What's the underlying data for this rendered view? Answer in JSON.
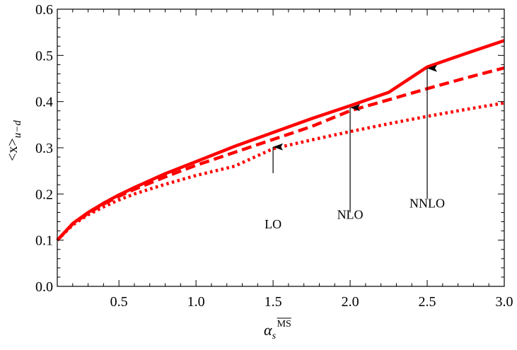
{
  "chart_data": {
    "type": "line",
    "title": "",
    "xlim": [
      0.1,
      3.0
    ],
    "ylim": [
      0.0,
      0.6
    ],
    "x_ticks": [
      0.5,
      1.0,
      1.5,
      2.0,
      2.5,
      3.0
    ],
    "x_tick_labels": [
      "0.5",
      "1.0",
      "1.5",
      "2.0",
      "2.5",
      "3.0"
    ],
    "y_ticks": [
      0.0,
      0.1,
      0.2,
      0.3,
      0.4,
      0.5,
      0.6
    ],
    "y_tick_labels": [
      "0.0",
      "0.1",
      "0.2",
      "0.3",
      "0.4",
      "0.5",
      "0.6"
    ],
    "xlabel": {
      "symbol": "α",
      "subscript": "s",
      "superscript": "MS"
    },
    "ylabel": {
      "text": "<x>",
      "subscript": "u−d"
    },
    "grid": false,
    "color": "#ff0000",
    "series": [
      {
        "label": "LO",
        "style": "dotted",
        "x": [
          0.1,
          0.2,
          0.3,
          0.4,
          0.5,
          0.6,
          0.8,
          1.0,
          1.25,
          1.5,
          1.75,
          2.0,
          2.25,
          2.5,
          2.75,
          3.0
        ],
        "values": [
          0.1,
          0.133,
          0.155,
          0.172,
          0.187,
          0.2,
          0.221,
          0.24,
          0.26,
          0.298,
          0.317,
          0.335,
          0.352,
          0.368,
          0.383,
          0.397
        ]
      },
      {
        "label": "NLO",
        "style": "dashed",
        "x": [
          0.1,
          0.2,
          0.3,
          0.4,
          0.5,
          0.6,
          0.8,
          1.0,
          1.25,
          1.5,
          1.75,
          2.0,
          2.25,
          2.5,
          2.75,
          3.0
        ],
        "values": [
          0.1,
          0.135,
          0.158,
          0.178,
          0.195,
          0.21,
          0.237,
          0.262,
          0.29,
          0.318,
          0.346,
          0.38,
          0.404,
          0.428,
          0.451,
          0.473
        ]
      },
      {
        "label": "NNLO",
        "style": "solid",
        "x": [
          0.1,
          0.2,
          0.3,
          0.4,
          0.5,
          0.6,
          0.8,
          1.0,
          1.25,
          1.5,
          1.75,
          2.0,
          2.25,
          2.5,
          2.75,
          3.0
        ],
        "values": [
          0.1,
          0.136,
          0.16,
          0.18,
          0.198,
          0.214,
          0.244,
          0.27,
          0.303,
          0.333,
          0.363,
          0.391,
          0.42,
          0.475,
          0.504,
          0.532
        ]
      }
    ],
    "annotations": [
      {
        "text": "LO",
        "arrow_to": [
          1.5,
          0.305
        ],
        "arrow_from": [
          1.5,
          0.245
        ],
        "text_at": [
          1.5,
          0.135
        ]
      },
      {
        "text": "NLO",
        "arrow_to": [
          2.0,
          0.39
        ],
        "arrow_from": [
          2.0,
          0.16
        ],
        "text_at": [
          2.0,
          0.155
        ]
      },
      {
        "text": "NNLO",
        "arrow_to": [
          2.5,
          0.475
        ],
        "arrow_from": [
          2.5,
          0.19
        ],
        "text_at": [
          2.5,
          0.18
        ]
      }
    ]
  }
}
